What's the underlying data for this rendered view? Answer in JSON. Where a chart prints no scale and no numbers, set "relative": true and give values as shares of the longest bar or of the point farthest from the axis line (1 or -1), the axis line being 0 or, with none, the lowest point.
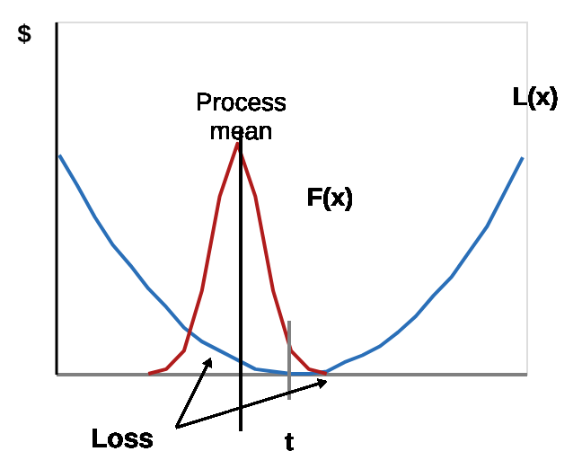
{
  "chart_data": {
    "type": "line",
    "relative": true,
    "ylabel": "$",
    "categories": [
      null,
      null,
      null,
      null,
      null,
      null,
      null,
      null,
      null,
      null,
      null,
      null,
      null,
      null,
      null,
      null,
      null,
      null,
      null,
      null,
      null,
      null,
      null,
      null,
      null,
      null,
      null
    ],
    "series": [
      {
        "name": "L(x)",
        "color": "#2a6fb8",
        "values": [
          0.95,
          0.82,
          0.68,
          0.56,
          0.47,
          0.37,
          0.29,
          0.2,
          0.14,
          0.1,
          0.06,
          0.02,
          0.01,
          0,
          0,
          0.01,
          0.05,
          0.08,
          0.12,
          0.18,
          0.25,
          0.34,
          0.42,
          0.53,
          0.64,
          0.79,
          0.94
        ]
      },
      {
        "name": "F(x)",
        "color": "#b01c1c",
        "values": [
          null,
          null,
          null,
          null,
          null,
          0,
          0.02,
          0.1,
          0.36,
          0.77,
          1,
          0.77,
          0.36,
          0.1,
          0.02,
          0,
          null,
          null,
          null,
          null,
          null,
          null,
          null,
          null,
          null,
          null,
          null
        ]
      }
    ],
    "annotations": [
      "Process mean",
      "t",
      "Loss"
    ],
    "grid": false,
    "marker": "none",
    "line_style": "solid",
    "tick_labels": false
  }
}
